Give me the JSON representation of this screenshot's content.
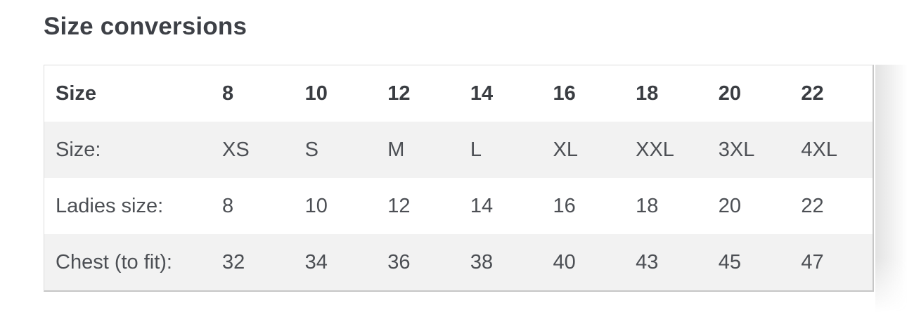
{
  "page": {
    "title": "Size conversions"
  },
  "table": {
    "header": {
      "label": "Size",
      "values": [
        "8",
        "10",
        "12",
        "14",
        "16",
        "18",
        "20",
        "22"
      ]
    },
    "rows": [
      {
        "label": "Size:",
        "values": [
          "XS",
          "S",
          "M",
          "L",
          "XL",
          "XXL",
          "3XL",
          "4XL"
        ]
      },
      {
        "label": "Ladies size:",
        "values": [
          "8",
          "10",
          "12",
          "14",
          "16",
          "18",
          "20",
          "22"
        ]
      },
      {
        "label": "Chest (to fit):",
        "values": [
          "32",
          "34",
          "36",
          "38",
          "40",
          "43",
          "45",
          "47"
        ]
      }
    ]
  },
  "colors": {
    "heading_text": "#3d4046",
    "header_text": "#3a3d42",
    "body_text": "#4c4f54",
    "shaded_row_bg": "#f2f2f2",
    "border_light": "#dcdcdc",
    "border_dark": "#c6c6c6",
    "background": "#ffffff"
  }
}
